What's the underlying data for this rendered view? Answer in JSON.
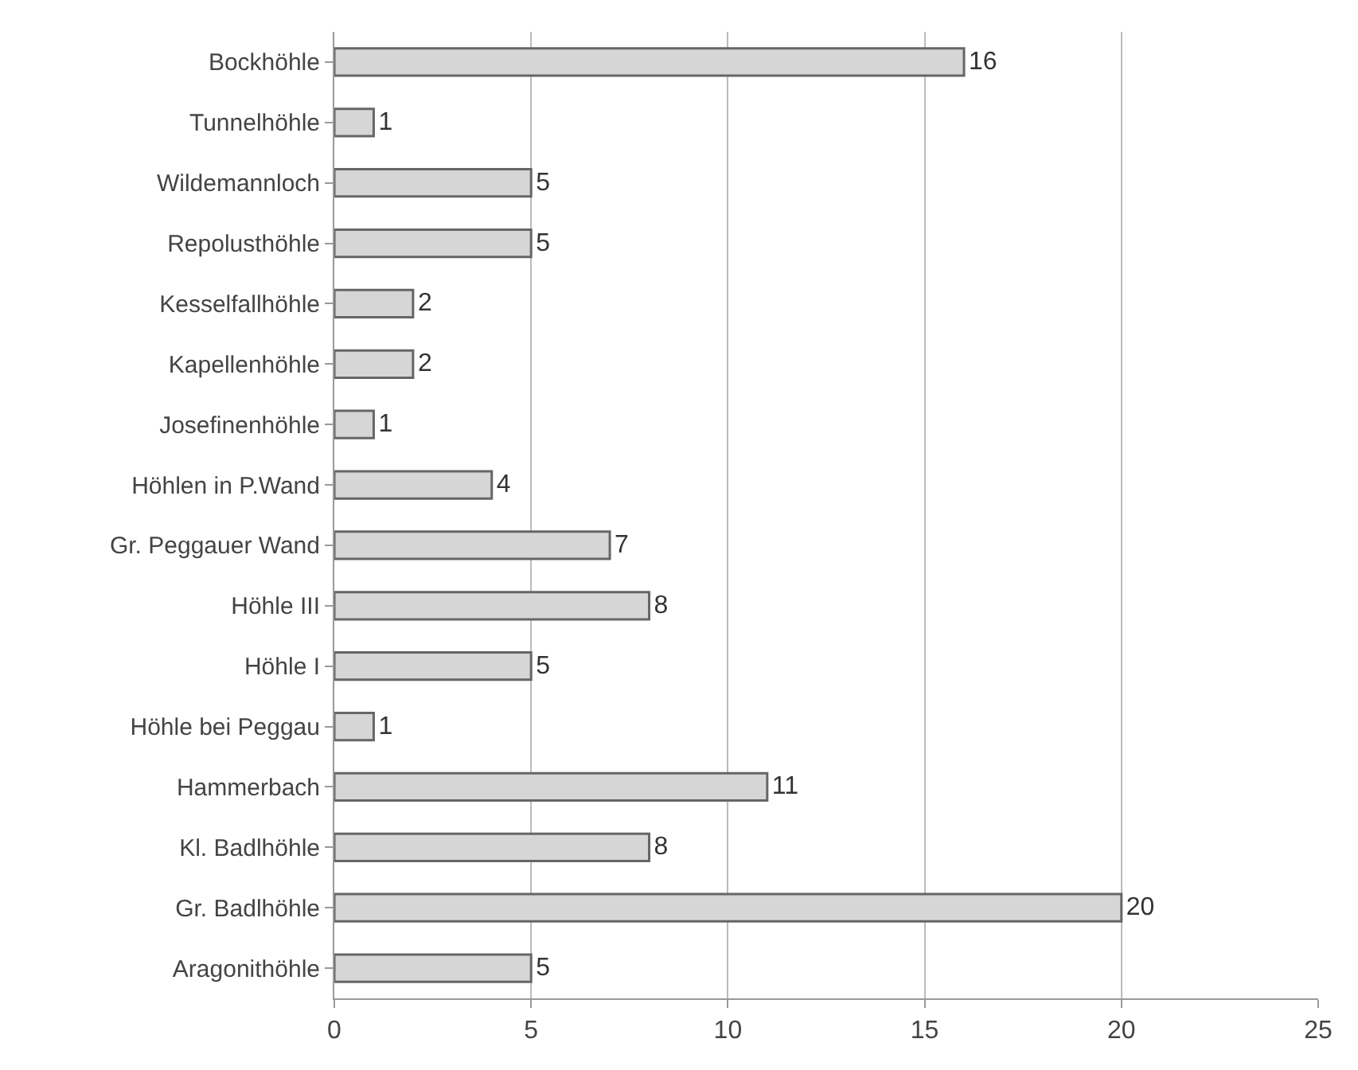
{
  "chart_data": {
    "type": "bar",
    "orientation": "horizontal",
    "categories": [
      "Bockhöhle",
      "Tunnelhöhle",
      "Wildemannloch",
      "Repolusthöhle",
      "Kesselfallhöhle",
      "Kapellenhöhle",
      "Josefinenhöhle",
      "Höhlen in P.Wand",
      "Gr. Peggauer Wand",
      "Höhle III",
      "Höhle I",
      "Höhle bei Peggau",
      "Hammerbach",
      "Kl. Badlhöhle",
      "Gr. Badlhöhle",
      "Aragonithöhle"
    ],
    "values": [
      16,
      1,
      5,
      5,
      2,
      2,
      1,
      4,
      7,
      8,
      5,
      1,
      11,
      8,
      20,
      5
    ],
    "color": "#d6d6d6",
    "xlim": [
      0,
      25
    ],
    "xticks": [
      0,
      5,
      10,
      15,
      20,
      25
    ],
    "grid": "x",
    "data_labels": true
  }
}
